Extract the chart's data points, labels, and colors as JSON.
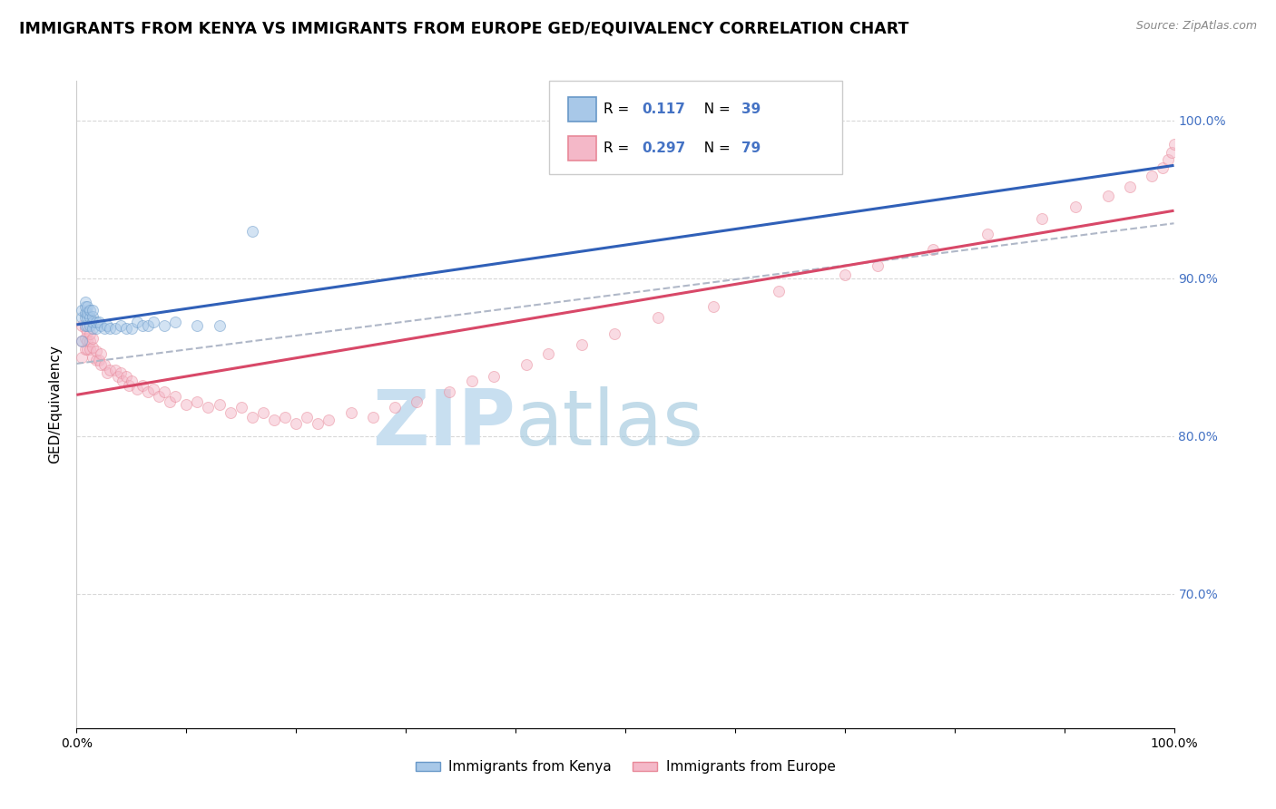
{
  "title": "IMMIGRANTS FROM KENYA VS IMMIGRANTS FROM EUROPE GED/EQUIVALENCY CORRELATION CHART",
  "source": "Source: ZipAtlas.com",
  "ylabel": "GED/Equivalency",
  "ytick_labels": [
    "100.0%",
    "90.0%",
    "80.0%",
    "70.0%"
  ],
  "ytick_values": [
    1.0,
    0.9,
    0.8,
    0.7
  ],
  "xlim": [
    0.0,
    1.0
  ],
  "ylim": [
    0.615,
    1.025
  ],
  "legend_label1": "Immigrants from Kenya",
  "legend_label2": "Immigrants from Europe",
  "kenya_color": "#a8c8e8",
  "europe_color": "#f4b8c8",
  "kenya_edge": "#6898c8",
  "europe_edge": "#e88898",
  "trend_kenya_color": "#3060b8",
  "trend_europe_color": "#d84868",
  "trend_dashed_color": "#b0b8c8",
  "kenya_x": [
    0.005,
    0.005,
    0.005,
    0.008,
    0.008,
    0.008,
    0.008,
    0.008,
    0.01,
    0.01,
    0.01,
    0.01,
    0.012,
    0.012,
    0.012,
    0.015,
    0.015,
    0.015,
    0.015,
    0.018,
    0.018,
    0.02,
    0.022,
    0.025,
    0.028,
    0.03,
    0.035,
    0.04,
    0.045,
    0.05,
    0.055,
    0.06,
    0.065,
    0.07,
    0.08,
    0.09,
    0.11,
    0.13,
    0.16
  ],
  "kenya_y": [
    0.86,
    0.875,
    0.88,
    0.87,
    0.875,
    0.878,
    0.882,
    0.885,
    0.87,
    0.875,
    0.878,
    0.882,
    0.87,
    0.875,
    0.88,
    0.868,
    0.872,
    0.876,
    0.88,
    0.868,
    0.872,
    0.872,
    0.87,
    0.868,
    0.87,
    0.868,
    0.868,
    0.87,
    0.868,
    0.868,
    0.872,
    0.87,
    0.87,
    0.872,
    0.87,
    0.872,
    0.87,
    0.87,
    0.93
  ],
  "europe_x": [
    0.005,
    0.005,
    0.005,
    0.008,
    0.008,
    0.008,
    0.01,
    0.01,
    0.01,
    0.012,
    0.012,
    0.012,
    0.015,
    0.015,
    0.015,
    0.018,
    0.018,
    0.02,
    0.022,
    0.022,
    0.025,
    0.028,
    0.03,
    0.035,
    0.038,
    0.04,
    0.042,
    0.045,
    0.048,
    0.05,
    0.055,
    0.06,
    0.065,
    0.07,
    0.075,
    0.08,
    0.085,
    0.09,
    0.1,
    0.11,
    0.12,
    0.13,
    0.14,
    0.15,
    0.16,
    0.17,
    0.18,
    0.19,
    0.2,
    0.21,
    0.22,
    0.23,
    0.25,
    0.27,
    0.29,
    0.31,
    0.34,
    0.36,
    0.38,
    0.41,
    0.43,
    0.46,
    0.49,
    0.53,
    0.58,
    0.64,
    0.7,
    0.73,
    0.78,
    0.83,
    0.88,
    0.91,
    0.94,
    0.96,
    0.98,
    0.99,
    0.995,
    0.998,
    1.0
  ],
  "europe_y": [
    0.85,
    0.86,
    0.87,
    0.855,
    0.862,
    0.868,
    0.855,
    0.86,
    0.866,
    0.855,
    0.86,
    0.865,
    0.85,
    0.856,
    0.862,
    0.848,
    0.854,
    0.848,
    0.845,
    0.852,
    0.845,
    0.84,
    0.842,
    0.842,
    0.838,
    0.84,
    0.835,
    0.838,
    0.832,
    0.835,
    0.83,
    0.832,
    0.828,
    0.83,
    0.825,
    0.828,
    0.822,
    0.825,
    0.82,
    0.822,
    0.818,
    0.82,
    0.815,
    0.818,
    0.812,
    0.815,
    0.81,
    0.812,
    0.808,
    0.812,
    0.808,
    0.81,
    0.815,
    0.812,
    0.818,
    0.822,
    0.828,
    0.835,
    0.838,
    0.845,
    0.852,
    0.858,
    0.865,
    0.875,
    0.882,
    0.892,
    0.902,
    0.908,
    0.918,
    0.928,
    0.938,
    0.945,
    0.952,
    0.958,
    0.965,
    0.97,
    0.975,
    0.98,
    0.985
  ],
  "background_color": "#ffffff",
  "grid_color": "#d8d8d8",
  "watermark_color": "#c8dff0",
  "marker_size": 75,
  "marker_alpha": 0.5
}
